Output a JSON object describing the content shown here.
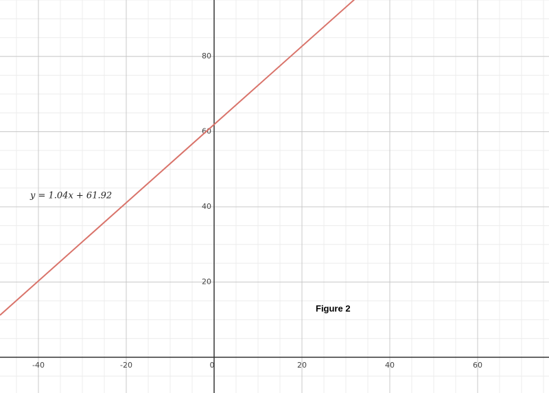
{
  "chart_data": {
    "type": "line",
    "x": [
      -48.75,
      32.5
    ],
    "series": [
      {
        "color": "#d9736a",
        "values": [
          11.2,
          95.7
        ]
      }
    ],
    "xlim": [
      -48.75,
      76.25
    ],
    "ylim": [
      -9.5,
      95
    ],
    "xticks": [
      -40,
      -20,
      0,
      20,
      40,
      60
    ],
    "yticks": [
      20,
      40,
      60,
      80
    ],
    "grid": true,
    "minor_grid": true,
    "equation": "y = 1.04x + 61.92",
    "caption": "Figure 2"
  }
}
